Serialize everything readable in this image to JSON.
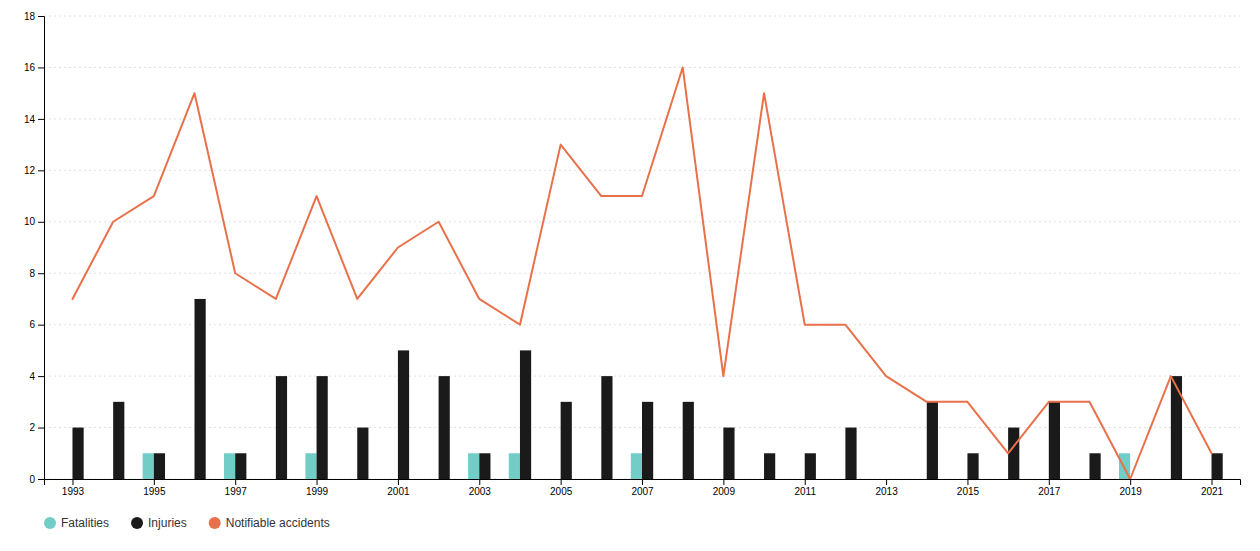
{
  "chart_data": {
    "type": "bar",
    "x": [
      1993,
      1994,
      1995,
      1996,
      1997,
      1998,
      1999,
      2000,
      2001,
      2002,
      2003,
      2004,
      2005,
      2006,
      2007,
      2008,
      2009,
      2010,
      2011,
      2012,
      2013,
      2014,
      2015,
      2016,
      2017,
      2018,
      2019,
      2020,
      2021
    ],
    "series": [
      {
        "name": "Fatalities",
        "type": "bar",
        "color": "#72cdc7",
        "values": [
          0,
          0,
          1,
          0,
          1,
          0,
          1,
          0,
          0,
          0,
          1,
          1,
          0,
          0,
          1,
          0,
          0,
          0,
          0,
          0,
          0,
          0,
          0,
          0,
          0,
          0,
          1,
          0,
          0
        ]
      },
      {
        "name": "Injuries",
        "type": "bar",
        "color": "#1a1a1a",
        "values": [
          2,
          3,
          1,
          7,
          1,
          4,
          4,
          2,
          5,
          4,
          1,
          5,
          3,
          4,
          3,
          3,
          2,
          1,
          1,
          2,
          0,
          3,
          1,
          2,
          3,
          1,
          0,
          4,
          1
        ]
      },
      {
        "name": "Notifiable accidents",
        "type": "line",
        "color": "#e8714a",
        "values": [
          7,
          10,
          11,
          15,
          8,
          7,
          11,
          7,
          9,
          10,
          7,
          6,
          13,
          11,
          11,
          16,
          4,
          15,
          6,
          6,
          4,
          3,
          3,
          1,
          3,
          3,
          0,
          4,
          1
        ]
      }
    ],
    "xlim": [
      1992.3,
      2021.7
    ],
    "xticks": [
      1993,
      1995,
      1997,
      1999,
      2001,
      2003,
      2005,
      2007,
      2009,
      2011,
      2013,
      2015,
      2017,
      2019,
      2021
    ],
    "ylim": [
      0,
      18
    ],
    "yticks": [
      0,
      2,
      4,
      6,
      8,
      10,
      12,
      14,
      16,
      18
    ],
    "grid": true,
    "legend": "bottom"
  }
}
